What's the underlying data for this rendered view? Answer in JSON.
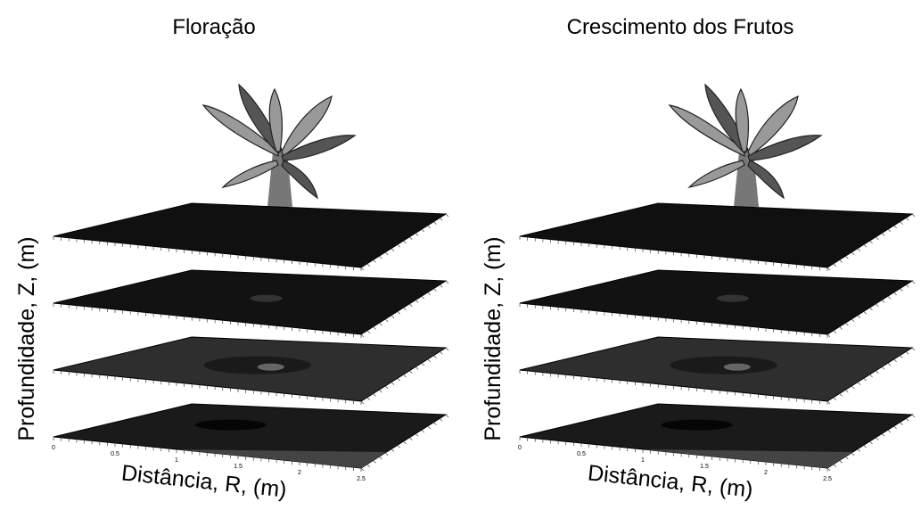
{
  "panels": [
    {
      "title": "Floração",
      "y_label": "Profundidade, Z, (m)",
      "x_label": "Distância, R, (m)",
      "x_ticks": [
        "0",
        "0.5",
        "1",
        "1.5",
        "2",
        "2.5"
      ]
    },
    {
      "title": "Crescimento dos Frutos",
      "y_label": "Profundidade, Z, (m)",
      "x_label": "Distância, R, (m)",
      "x_ticks": [
        "0",
        "0.5",
        "1",
        "1.5",
        "2",
        "2.5"
      ]
    }
  ]
}
